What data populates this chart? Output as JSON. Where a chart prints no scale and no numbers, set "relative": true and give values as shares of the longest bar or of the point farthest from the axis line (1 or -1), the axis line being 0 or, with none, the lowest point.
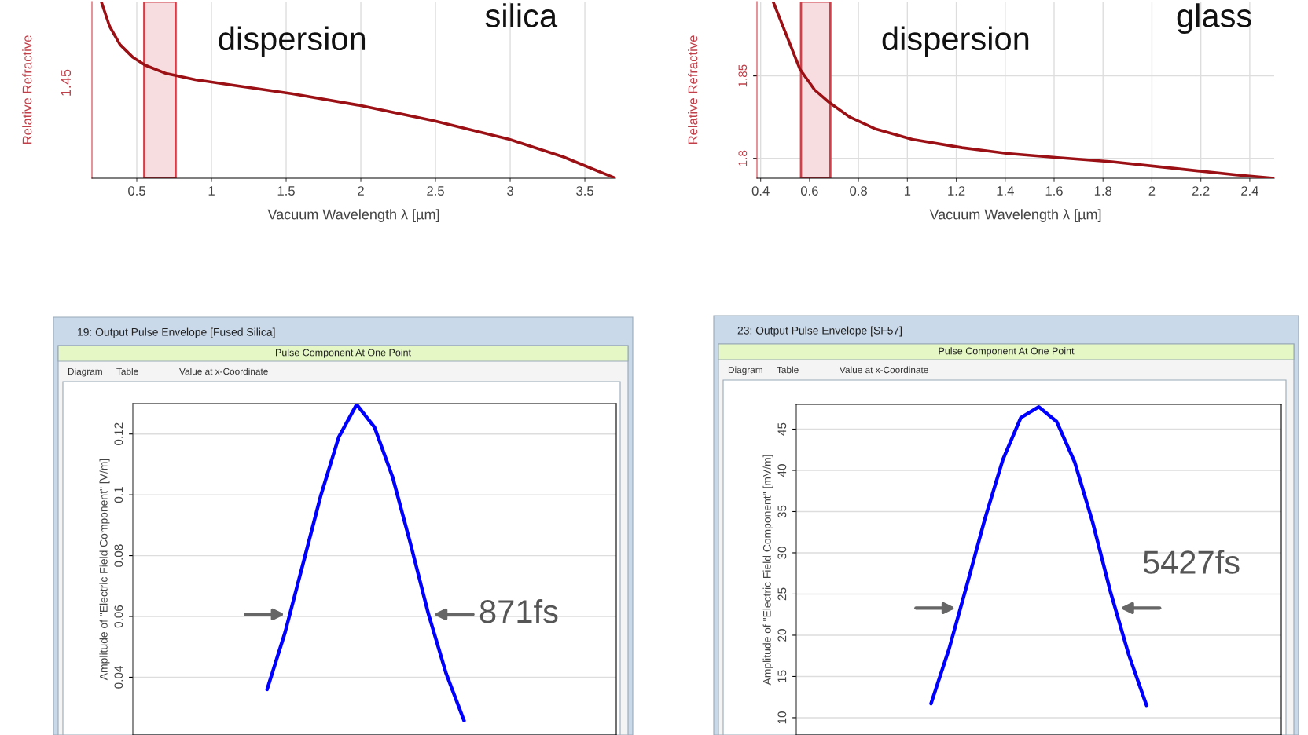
{
  "chart_data": [
    {
      "type": "line",
      "ylabel": "Relative Refractive",
      "relative": true,
      "xlabel": "Vacuum Wavelength λ [µm]",
      "xlim": [
        0.2,
        3.705
      ],
      "xticks": [
        0.5,
        1,
        1.5,
        2,
        2.5,
        3,
        3.5
      ],
      "grid": true,
      "x": [
        0.262,
        0.318,
        0.388,
        0.472,
        0.556,
        0.696,
        0.892,
        1.116,
        1.536,
        1.983,
        2.487,
        2.991,
        3.355,
        3.705
      ],
      "series": [
        {
          "color": "#9b1015",
          "values": [
            1.0,
            0.86,
            0.756,
            0.686,
            0.64,
            0.593,
            0.558,
            0.53,
            0.479,
            0.414,
            0.326,
            0.221,
            0.121,
            0.0
          ]
        }
      ],
      "bands": [
        {
          "axis": "x",
          "from": 0.55,
          "to": 0.76,
          "color": "#f7dde0"
        }
      ],
      "annotations": [
        "1.45",
        "dispersion",
        "silica"
      ]
    },
    {
      "type": "line",
      "ylabel": "Relative Refractive",
      "xlabel": "Vacuum Wavelength λ [µm]",
      "xlim": [
        0.385,
        2.5
      ],
      "xticks": [
        0.4,
        0.6,
        0.8,
        1,
        1.2,
        1.4,
        1.6,
        1.8,
        2,
        2.2,
        2.4
      ],
      "ylim": [
        1.788,
        1.895
      ],
      "yticks": [
        1.8,
        1.85
      ],
      "grid": true,
      "x": [
        0.451,
        0.51,
        0.561,
        0.621,
        0.68,
        0.765,
        0.867,
        1.02,
        1.224,
        1.41,
        1.615,
        1.836,
        2.09,
        2.346,
        2.5
      ],
      "series": [
        {
          "color": "#9b1015",
          "values": [
            1.895,
            1.873,
            1.854,
            1.8415,
            1.834,
            1.825,
            1.818,
            1.8115,
            1.8065,
            1.803,
            1.8005,
            1.798,
            1.794,
            1.79,
            1.788
          ]
        }
      ],
      "bands": [
        {
          "axis": "x",
          "from": 0.565,
          "to": 0.685,
          "color": "#f7dde0"
        }
      ],
      "annotations": [
        "dispersion",
        "glass"
      ]
    },
    {
      "type": "line",
      "title": "19: Output Pulse Envelope [Fused Silica]",
      "subtitle": "Pulse Component At One Point",
      "ylabel": "Amplitude of \"Electric Field Component\" [V/m]",
      "ylim": [
        0.021,
        0.13
      ],
      "yticks": [
        0.04,
        0.06,
        0.08,
        0.1,
        0.12
      ],
      "grid": "y",
      "tick_labels": "y",
      "categories": [
        null,
        null,
        null,
        null,
        null,
        null,
        null,
        null,
        null,
        null,
        null,
        null,
        null,
        null,
        null,
        null,
        null,
        null,
        null,
        null,
        null,
        null,
        null,
        null,
        null,
        null,
        null
      ],
      "series": [
        {
          "color": "#0000ff",
          "values": [
            null,
            null,
            null,
            null,
            null,
            null,
            null,
            0.036,
            0.0547,
            0.0772,
            0.0998,
            0.119,
            0.1297,
            0.1222,
            0.106,
            0.0841,
            0.061,
            0.0412,
            0.0257,
            null,
            null,
            null,
            null,
            null,
            null,
            null,
            null
          ]
        }
      ],
      "annotations": [
        "Diagram",
        "Table",
        "Value at x-Coordinate",
        "871fs"
      ]
    },
    {
      "type": "line",
      "title": "23: Output Pulse Envelope [SF57]",
      "subtitle": "Pulse Component At One Point",
      "ylabel": "Amplitude of \"Electric Field Component\" [mV/m]",
      "ylim": [
        7.9,
        48
      ],
      "yticks": [
        10,
        15,
        20,
        25,
        30,
        35,
        40,
        45
      ],
      "grid": "y",
      "tick_labels": "y",
      "categories": [
        null,
        null,
        null,
        null,
        null,
        null,
        null,
        null,
        null,
        null,
        null,
        null,
        null,
        null,
        null,
        null,
        null,
        null,
        null,
        null,
        null,
        null,
        null,
        null,
        null,
        null,
        null
      ],
      "series": [
        {
          "color": "#0000ff",
          "values": [
            null,
            null,
            null,
            null,
            null,
            null,
            null,
            11.7,
            18.3,
            26.1,
            34.1,
            41.3,
            46.4,
            47.7,
            45.9,
            41.0,
            33.7,
            25.2,
            17.7,
            11.5,
            null,
            null,
            null,
            null,
            null,
            null,
            null
          ]
        }
      ],
      "annotations": [
        "Diagram",
        "Table",
        "Value at x-Coordinate",
        "5427fs"
      ]
    }
  ]
}
